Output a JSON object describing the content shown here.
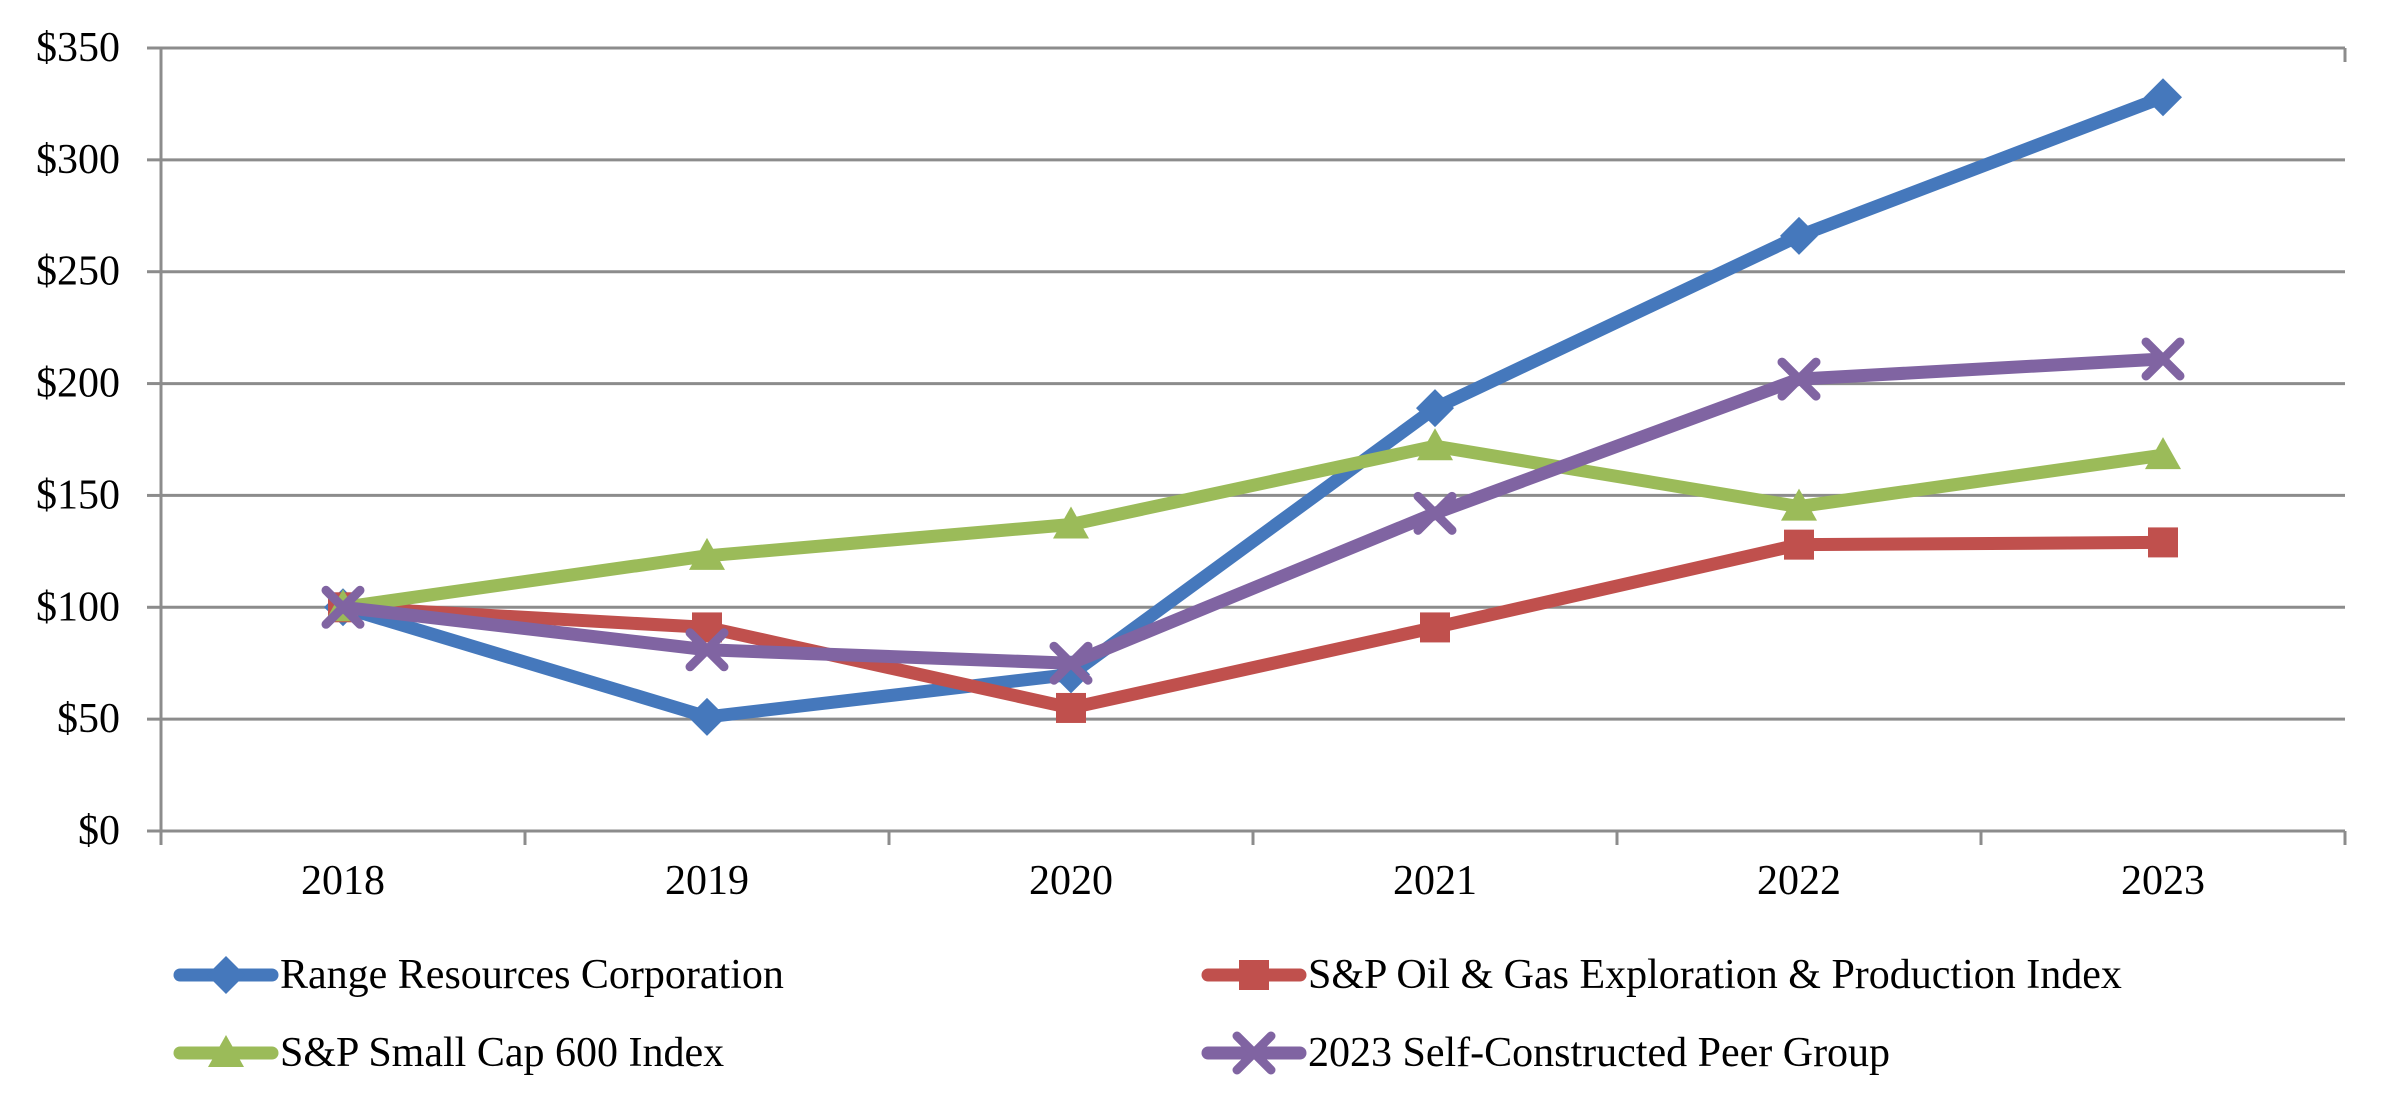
{
  "chart_data": {
    "type": "line",
    "title": "",
    "categories": [
      "2018",
      "2019",
      "2020",
      "2021",
      "2022",
      "2023"
    ],
    "series": [
      {
        "name": "Range Resources Corporation",
        "marker": "diamond",
        "color": "#4578BC",
        "values": [
          100,
          51,
          70,
          189,
          266,
          328
        ]
      },
      {
        "name": "S&P Oil & Gas Exploration & Production Index",
        "marker": "square",
        "color": "#C0504D",
        "values": [
          100,
          91,
          55,
          91,
          128,
          129
        ]
      },
      {
        "name": "S&P Small Cap 600 Index",
        "marker": "triangle",
        "color": "#9BBB59",
        "values": [
          100,
          123,
          137,
          172,
          145,
          168
        ]
      },
      {
        "name": "2023 Self-Constructed Peer Group",
        "marker": "x",
        "color": "#8064A2",
        "values": [
          100,
          81,
          75,
          142,
          202,
          211
        ]
      }
    ],
    "y_axis": {
      "min": 0,
      "max": 350,
      "step": 50,
      "tick_labels": [
        "$0",
        "$50",
        "$100",
        "$150",
        "$200",
        "$250",
        "$300",
        "$350"
      ]
    },
    "x_axis": {
      "tick_labels": [
        "2018",
        "2019",
        "2020",
        "2021",
        "2022",
        "2023"
      ]
    },
    "legend": {
      "position": "bottom",
      "columns": 2,
      "rows": [
        [
          0,
          1
        ],
        [
          2,
          3
        ]
      ]
    },
    "grid": true,
    "colors": {
      "gridline": "#8C8C8C",
      "axis": "#8C8C8C",
      "text": "#000000",
      "background": "#FFFFFF"
    }
  }
}
